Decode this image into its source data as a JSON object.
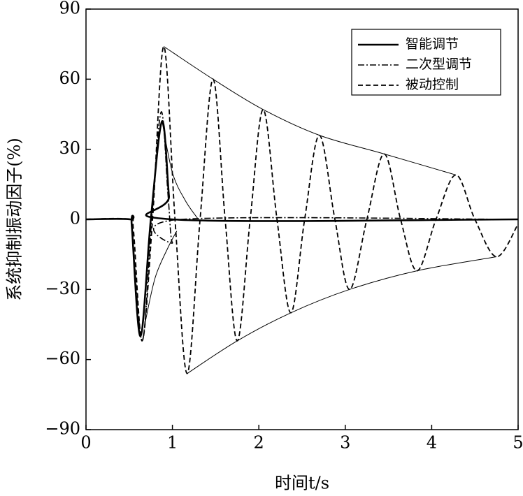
{
  "chart_data": {
    "type": "line",
    "xlabel": "时间t/s",
    "ylabel": "系统抑制振动因子(%)",
    "xlim": [
      0,
      5
    ],
    "xticks": [
      0,
      1,
      2,
      3,
      4,
      5
    ],
    "ylim": [
      -90,
      90
    ],
    "yticks": [
      {
        "value": -90,
        "label": "−90"
      },
      {
        "value": -60,
        "label": "−60"
      },
      {
        "value": -30,
        "label": "−30"
      },
      0,
      30,
      60,
      90
    ],
    "legend": "upper right",
    "series": [
      {
        "name": "智能调节",
        "color": "#000000",
        "linestyle": "solid",
        "x": [
          0,
          0.51,
          0.53,
          0.63,
          0.75,
          0.88,
          0.96,
          1.0,
          5
        ],
        "values": [
          0,
          0,
          -3,
          -50,
          0,
          42,
          10,
          0,
          0
        ]
      },
      {
        "name": "二次型调节",
        "color": "#000000",
        "linestyle": "dashdot",
        "x": [
          0,
          0.5,
          0.53,
          0.65,
          0.76,
          0.87,
          0.95,
          1.0,
          1.1,
          5
        ],
        "values": [
          0,
          0,
          -3,
          -52,
          0,
          46,
          10,
          -10,
          0,
          0
        ]
      },
      {
        "name": "被动控制",
        "color": "#000000",
        "linestyle": "dashed",
        "x": [
          0,
          0.5,
          0.55,
          0.65,
          0.77,
          0.9,
          1.03,
          1.17,
          1.32,
          1.47,
          1.61,
          1.75,
          1.9,
          2.05,
          2.21,
          2.37,
          2.53,
          2.7,
          2.88,
          3.05,
          3.25,
          3.45,
          3.64,
          3.83,
          4.05,
          4.28,
          4.5,
          4.75,
          5
        ],
        "values": [
          0,
          0,
          -5,
          -52,
          0,
          74,
          0,
          -66,
          0,
          60,
          0,
          -52,
          0,
          47,
          0,
          -40,
          0,
          36,
          0,
          -30,
          0,
          28,
          0,
          -22,
          0,
          19,
          0,
          -16,
          -2
        ]
      }
    ],
    "envelopes": [
      {
        "x": [
          0.9,
          1.47,
          2.05,
          2.7,
          3.45,
          4.28
        ],
        "values": [
          74,
          60,
          47,
          36,
          28,
          19
        ]
      },
      {
        "x": [
          1.17,
          1.75,
          2.37,
          3.05,
          3.83,
          4.75
        ],
        "values": [
          -66,
          -52,
          -40,
          -30,
          -22,
          -16
        ]
      },
      {
        "x": [
          0.88,
          1.0,
          1.15,
          1.3
        ],
        "values": [
          42,
          20,
          8,
          0
        ]
      },
      {
        "x": [
          0.68,
          0.8,
          0.95,
          1.05
        ],
        "values": [
          -45,
          -25,
          -12,
          -5
        ]
      }
    ]
  }
}
